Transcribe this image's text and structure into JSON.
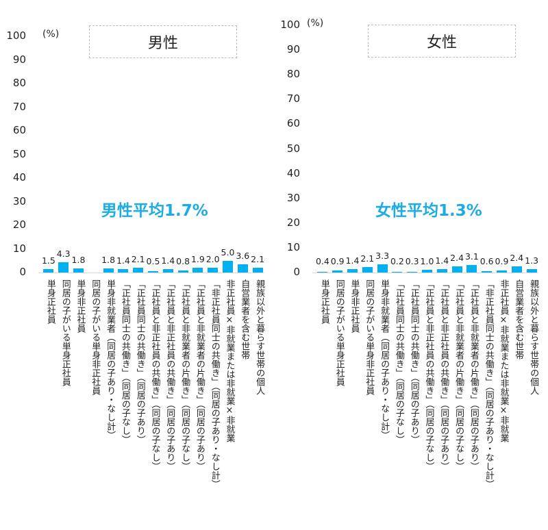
{
  "chart_data": [
    {
      "type": "bar",
      "title": "男性",
      "unit_label": "(%)",
      "annotation": "男性平均1.7%",
      "ylim": [
        0,
        100
      ],
      "yticks": [
        0,
        10,
        20,
        30,
        40,
        50,
        60,
        70,
        80,
        90,
        100
      ],
      "grid": false,
      "categories": [
        "単身正社員",
        "同居の子がいる単身正社員",
        "単身非正社員",
        "同居の子がいる単身非正社員",
        "単身非就業者（同居の子あり・なし計）",
        "「正社員同士の共働き」（同居の子なし）",
        "「正社員同士の共働き」（同居の子あり）",
        "「正社員と非正社員の共働き」（同居の子なし）",
        "「正社員と非正社員の共働き」（同居の子あり）",
        "「正社員と非就業者の片働き」（同居の子なし）",
        "「正社員と非就業者の片働き」（同居の子あり）",
        "「非正社員同士の共働き」（同居の子あり・なし計）",
        "非正社員×非就業または非就業×非就業",
        "自営業者を含む世帯",
        "親族以外と暮らす世帯の個人"
      ],
      "values": [
        1.5,
        4.3,
        1.8,
        null,
        1.8,
        1.4,
        2.1,
        0.5,
        1.4,
        0.8,
        1.9,
        2.0,
        5.0,
        3.6,
        2.1
      ],
      "value_labels": [
        "1.5",
        "4.3",
        "1.8",
        "",
        "1.8",
        "1.4",
        "2.1",
        "0.5",
        "1.4",
        "0.8",
        "1.9",
        "2.0",
        "5.0",
        "3.6",
        "2.1"
      ],
      "bar_color": "#00b0f0"
    },
    {
      "type": "bar",
      "title": "女性",
      "unit_label": "(%)",
      "annotation": "女性平均1.3%",
      "ylim": [
        0,
        100
      ],
      "yticks": [
        0,
        10,
        20,
        30,
        40,
        50,
        60,
        70,
        80,
        90,
        100
      ],
      "grid": false,
      "categories": [
        "単身正社員",
        "同居の子がいる単身正社員",
        "単身非正社員",
        "同居の子がいる単身非正社員",
        "単身非就業者（同居の子あり・なし計）",
        "「正社員同士の共働き」（同居の子なし）",
        "「正社員同士の共働き」（同居の子あり）",
        "「正社員と非正社員の共働き」（同居の子なし）",
        "「正社員と非正社員の共働き」（同居の子あり）",
        "「正社員と非就業者の片働き」（同居の子なし）",
        "「正社員と非就業者の片働き」（同居の子あり）",
        "「非正社員同士の共働き」（同居の子あり・なし計）",
        "非正社員×非就業または非就業×非就業",
        "自営業者を含む世帯",
        "親族以外と暮らす世帯の個人"
      ],
      "values": [
        0.4,
        0.9,
        1.4,
        2.1,
        3.3,
        0.2,
        0.3,
        1.0,
        1.4,
        2.4,
        3.1,
        0.6,
        0.9,
        2.4,
        1.3
      ],
      "value_labels": [
        "0.4",
        "0.9",
        "1.4",
        "2.1",
        "3.3",
        "0.2",
        "0.3",
        "1.0",
        "1.4",
        "2.4",
        "3.1",
        "0.6",
        "0.9",
        "2.4",
        "1.3"
      ],
      "bar_color": "#00b0f0"
    }
  ],
  "male": {
    "title": "男性",
    "unit": "(%)",
    "average": "男性平均1.7%",
    "ticks": [
      "100",
      "90",
      "80",
      "70",
      "60",
      "50",
      "40",
      "30",
      "20",
      "10",
      "0"
    ]
  },
  "female": {
    "title": "女性",
    "unit": "(%)",
    "average": "女性平均1.3%",
    "ticks": [
      "100",
      "90",
      "80",
      "70",
      "60",
      "50",
      "40",
      "30",
      "20",
      "10",
      "0"
    ]
  }
}
